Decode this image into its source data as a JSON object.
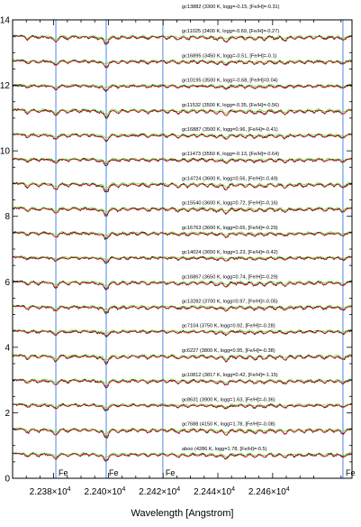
{
  "chart_data": {
    "type": "line",
    "title": "",
    "xlabel": "Wavelength [Angstrom]",
    "ylabel": "",
    "xlim": [
      22365,
      22489
    ],
    "ylim": [
      0,
      14
    ],
    "yticks": [
      0,
      2,
      4,
      6,
      8,
      10,
      12,
      14
    ],
    "xticks": [
      {
        "value": 22380,
        "mantissa": "2.238",
        "exponent": "4"
      },
      {
        "value": 22400,
        "mantissa": "2.240",
        "exponent": "4"
      },
      {
        "value": 22420,
        "mantissa": "2.242",
        "exponent": "4"
      },
      {
        "value": 22440,
        "mantissa": "2.244",
        "exponent": "4"
      },
      {
        "value": 22460,
        "mantissa": "2.246",
        "exponent": "4"
      }
    ],
    "x_times_sign": "×10",
    "fe_lines": [
      {
        "x": 22380.8,
        "label": "Fe"
      },
      {
        "x": 22399.2,
        "label": "Fe"
      },
      {
        "x": 22419.9,
        "label": "Fe"
      },
      {
        "x": 22485.7,
        "label": "Fe"
      }
    ],
    "spectra": [
      {
        "label": "gc13882 (3300 K, logg=-0.15, [Fe/H]=-0.31)",
        "offset": 13.25
      },
      {
        "label": "gc11025 (3400 K, logg=-0.69, [Fe/H]=-0.27)",
        "offset": 12.5
      },
      {
        "label": "gc16895 (3450 K, logg=-0.51, [Fe/H]=-0.1)",
        "offset": 11.75
      },
      {
        "label": "gc10195 (3500 K, logg=-0.68, [Fe/H]=0.04)",
        "offset": 11.0
      },
      {
        "label": "gc11532 (3500 K, logg=-0.35, [Fe/H]=-0.56)",
        "offset": 10.25
      },
      {
        "label": "gc16887 (3500 K, logg=0.96, [Fe/H]=-0.41)",
        "offset": 9.5
      },
      {
        "label": "gc11473 (3550 K, logg=-0.13, [Fe/H]=-0.64)",
        "offset": 8.75
      },
      {
        "label": "gc14724 (3600 K, logg=0.56, [Fe/H]=-0.49)",
        "offset": 8.0
      },
      {
        "label": "gc15540 (3600 K, logg=0.72, [Fe/H]=-0.16)",
        "offset": 7.25
      },
      {
        "label": "gc16763 (3600 K, logg=0.65, [Fe/H]=-0.29)",
        "offset": 6.5
      },
      {
        "label": "gc14024 (3650 K, logg=1.23, [Fe/H]=-0.42)",
        "offset": 5.75
      },
      {
        "label": "gc16867 (3650 K, logg=0.74, [Fe/H]=-0.29)",
        "offset": 5.0
      },
      {
        "label": "gc13282 (3700 K, logg=0.97, [Fe/H]=-0.05)",
        "offset": 4.25
      },
      {
        "label": "gc7104 (3750 K, logg=0.92, [Fe/H]=-0.28)",
        "offset": 3.5
      },
      {
        "label": "gc6227 (3800 K, logg=0.95, [Fe/H]=-0.38)",
        "offset": 2.75
      },
      {
        "label": "gc10812 (3817 K, logg=0.42, [Fe/H]=-1.15)",
        "offset": 2.0
      },
      {
        "label": "gc8631 (3900 K, logg=1.63, [Fe/H]=-0.36)",
        "offset": 1.25
      },
      {
        "label": "gc7688 (4150 K, logg=1.78, [Fe/H]=-0.08)",
        "offset": 0.5
      },
      {
        "label": "aboo (4286 K, logg=1.78, [Fe/H]=-0.5)",
        "offset": -0.25
      }
    ],
    "colors": {
      "observed": "#111111",
      "model": "#e0242a",
      "reference": "#57e33a",
      "fe_line": "#3a7be0"
    },
    "grid": false,
    "legend": "none"
  }
}
